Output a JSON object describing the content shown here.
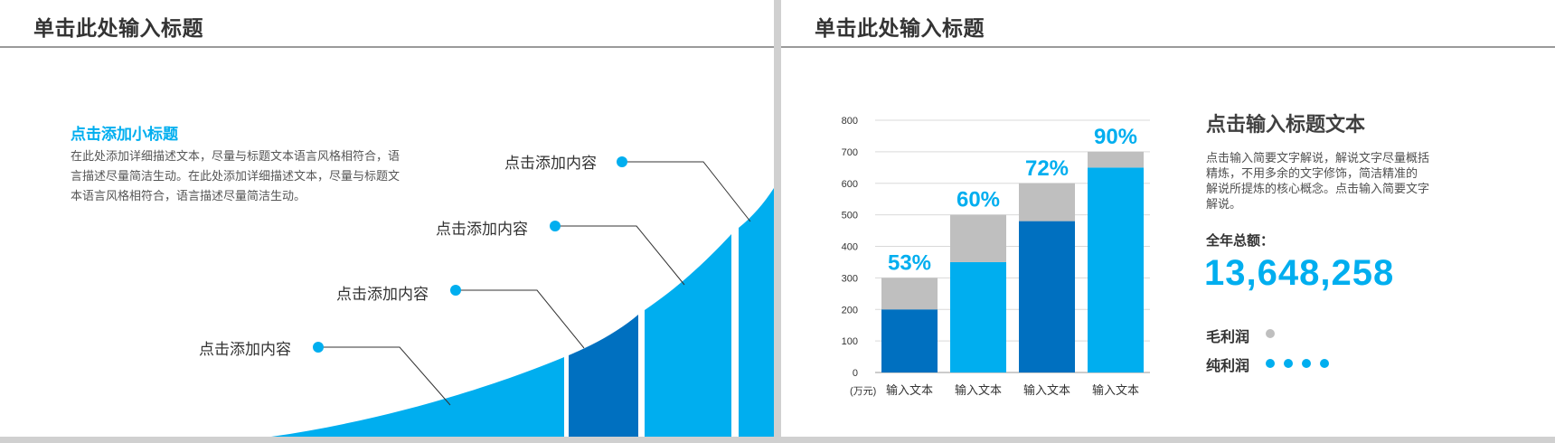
{
  "left_slide": {
    "title": "单击此处输入标题",
    "subtitle": "点击添加小标题",
    "description": "在此处添加详细描述文本，尽量与标题文本语言风格相符合，语言描述尽量简洁生动。在此处添加详细描述文本，尽量与标题文本语言风格相符合，语言描述尽量简洁生动。",
    "callouts": [
      "点击添加内容",
      "点击添加内容",
      "点击添加内容",
      "点击添加内容"
    ],
    "colors": {
      "light_blue": "#00aeef",
      "dark_blue": "#0070c0",
      "line": "#333333"
    }
  },
  "right_slide": {
    "title": "单击此处输入标题",
    "panel": {
      "title": "点击输入标题文本",
      "description": "点击输入简要文字解说，解说文字尽量概括精炼，不用多余的文字修饰，简洁精准的 解说所提炼的核心概念。点击输入简要文字解说。",
      "total_label": "全年总额：",
      "total_value": "13,648,258",
      "legend": [
        {
          "label": "毛利润",
          "color": "#bfbfbf",
          "dots": 1
        },
        {
          "label": "纯利润",
          "color": "#00aeef",
          "dots": 4
        }
      ]
    }
  },
  "chart_data": {
    "type": "bar",
    "stacked": true,
    "categories": [
      "输入文本",
      "输入文本",
      "输入文本",
      "输入文本"
    ],
    "series": [
      {
        "values": [
          200,
          350,
          480,
          650
        ],
        "colors": [
          "#0070c0",
          "#00aeef",
          "#0070c0",
          "#00aeef"
        ]
      },
      {
        "values": [
          100,
          150,
          120,
          50
        ],
        "color": "#bfbfbf"
      }
    ],
    "data_labels": [
      "53%",
      "60%",
      "72%",
      "90%"
    ],
    "ylim": [
      0,
      800
    ],
    "yticks": [
      0,
      100,
      200,
      300,
      400,
      500,
      600,
      700,
      800
    ],
    "y_unit_label": "(万元)",
    "grid": true
  }
}
